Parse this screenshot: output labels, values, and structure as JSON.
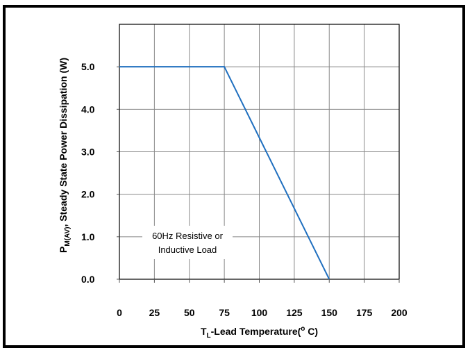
{
  "chart_data": {
    "type": "line",
    "x": [
      0,
      75,
      150
    ],
    "y": [
      5.0,
      5.0,
      0.0
    ],
    "xlim": [
      0,
      200
    ],
    "ylim": [
      0,
      6.0
    ],
    "x_ticks": [
      0,
      25,
      50,
      75,
      100,
      125,
      150,
      175,
      200
    ],
    "x_tick_labels": [
      "0",
      "25",
      "50",
      "75",
      "100",
      "125",
      "150",
      "175",
      "200"
    ],
    "y_ticks": [
      0,
      1,
      2,
      3,
      4,
      5
    ],
    "y_tick_labels": [
      "0.0",
      "1.0",
      "2.0",
      "3.0",
      "4.0",
      "5.0"
    ],
    "xlabel": {
      "main": "T",
      "sub": "L",
      "rest": "-Lead Temperature(",
      "sup": "o",
      "end": " C)"
    },
    "ylabel": {
      "main": "P",
      "sub": "M(AV)",
      "rest": ", Steady State Power Dissipation (W)"
    },
    "annotation": [
      "60Hz Resistive or",
      "Inductive Load"
    ],
    "grid": true,
    "line_color": "#1f6fbf"
  }
}
